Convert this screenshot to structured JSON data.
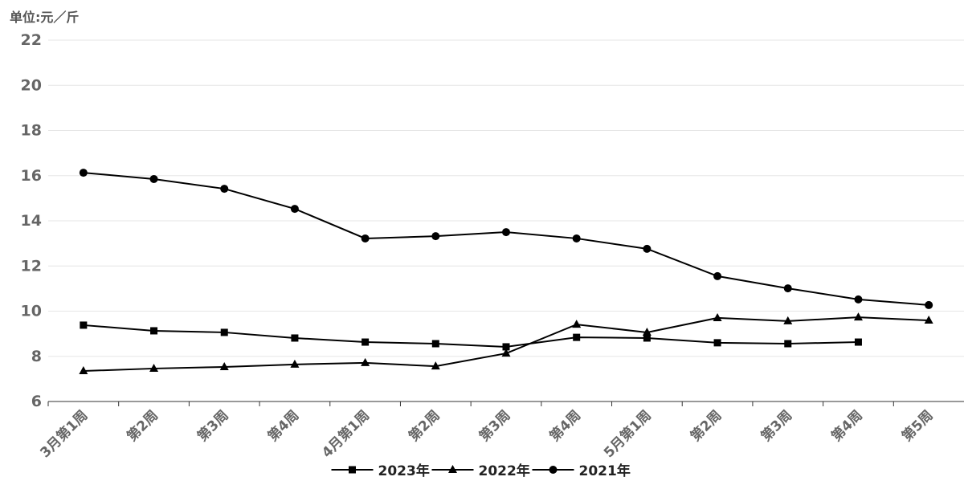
{
  "chart_data": {
    "type": "line",
    "unit_label": "单位:元／斤",
    "categories": [
      "3月第1周",
      "第2周",
      "第3周",
      "第4周",
      "4月第1周",
      "第2周",
      "第3周",
      "第4周",
      "5月第1周",
      "第2周",
      "第3周",
      "第4周",
      "第5周"
    ],
    "series": [
      {
        "name": "2023年",
        "color": "#000000",
        "marker": "square",
        "values": [
          9.38,
          9.13,
          9.06,
          8.81,
          8.63,
          8.56,
          8.42,
          8.84,
          8.81,
          8.6,
          8.56,
          8.63,
          null
        ]
      },
      {
        "name": "2022年",
        "color": "#000000",
        "marker": "triangle",
        "values": [
          7.35,
          7.46,
          7.53,
          7.64,
          7.71,
          7.56,
          8.13,
          9.41,
          9.06,
          9.7,
          9.56,
          9.73,
          9.59
        ]
      },
      {
        "name": "2021年",
        "color": "#000000",
        "marker": "circle",
        "values": [
          16.13,
          15.85,
          15.42,
          14.53,
          13.22,
          13.32,
          13.5,
          13.22,
          12.76,
          11.55,
          11.01,
          10.52,
          10.27
        ]
      }
    ],
    "ylim": [
      6,
      22
    ],
    "yticks": [
      6,
      8,
      10,
      12,
      14,
      16,
      18,
      20,
      22
    ],
    "grid": true,
    "legend": "bottom"
  }
}
